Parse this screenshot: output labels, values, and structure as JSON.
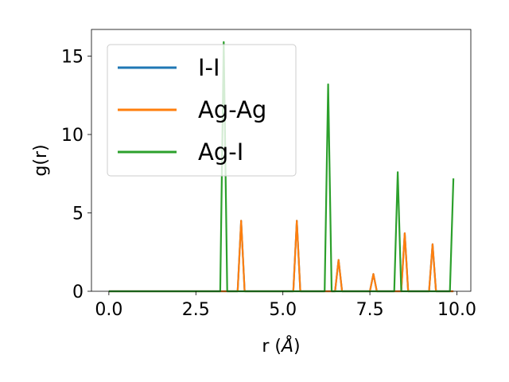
{
  "chart_data": {
    "type": "line",
    "xlabel": "r (",
    "xlabel_symbol": "Å",
    "xlabel_close": ")",
    "ylabel": "g(r)",
    "xlim": [
      -0.5,
      10.4
    ],
    "ylim": [
      0,
      16.7
    ],
    "xticks": [
      0.0,
      2.5,
      5.0,
      7.5,
      10.0
    ],
    "xtick_labels": [
      "0.0",
      "2.5",
      "5.0",
      "7.5",
      "10.0"
    ],
    "yticks": [
      0,
      5,
      10,
      15
    ],
    "ytick_labels": [
      "0",
      "5",
      "10",
      "15"
    ],
    "grid": false,
    "legend_position": "upper-left",
    "series": [
      {
        "name": "I-I",
        "color": "#1f77b4",
        "x": [
          0.0,
          3.7,
          3.8,
          3.9,
          5.3,
          5.4,
          5.5,
          6.5,
          6.6,
          6.7,
          7.5,
          7.6,
          7.7,
          8.4,
          8.5,
          8.6,
          9.2,
          9.3,
          9.4,
          9.9
        ],
        "y": [
          0,
          0,
          4.5,
          0,
          0,
          4.5,
          0,
          0,
          2.0,
          0,
          0,
          1.1,
          0,
          0,
          3.7,
          0,
          0,
          3.0,
          0,
          0
        ]
      },
      {
        "name": "Ag-Ag",
        "color": "#ff7f0e",
        "x": [
          0.0,
          3.7,
          3.8,
          3.9,
          5.3,
          5.4,
          5.5,
          6.5,
          6.6,
          6.7,
          7.5,
          7.6,
          7.7,
          8.4,
          8.5,
          8.6,
          9.2,
          9.3,
          9.4,
          9.9
        ],
        "y": [
          0,
          0,
          4.5,
          0,
          0,
          4.5,
          0,
          0,
          2.0,
          0,
          0,
          1.1,
          0,
          0,
          3.7,
          0,
          0,
          3.0,
          0,
          0
        ]
      },
      {
        "name": "Ag-I",
        "color": "#2ca02c",
        "x": [
          0.0,
          3.2,
          3.3,
          3.4,
          6.2,
          6.3,
          6.4,
          8.2,
          8.3,
          8.4,
          9.8,
          9.9
        ],
        "y": [
          0,
          0,
          15.9,
          0,
          0,
          13.2,
          0,
          0,
          7.6,
          0,
          0,
          7.2
        ]
      }
    ]
  }
}
